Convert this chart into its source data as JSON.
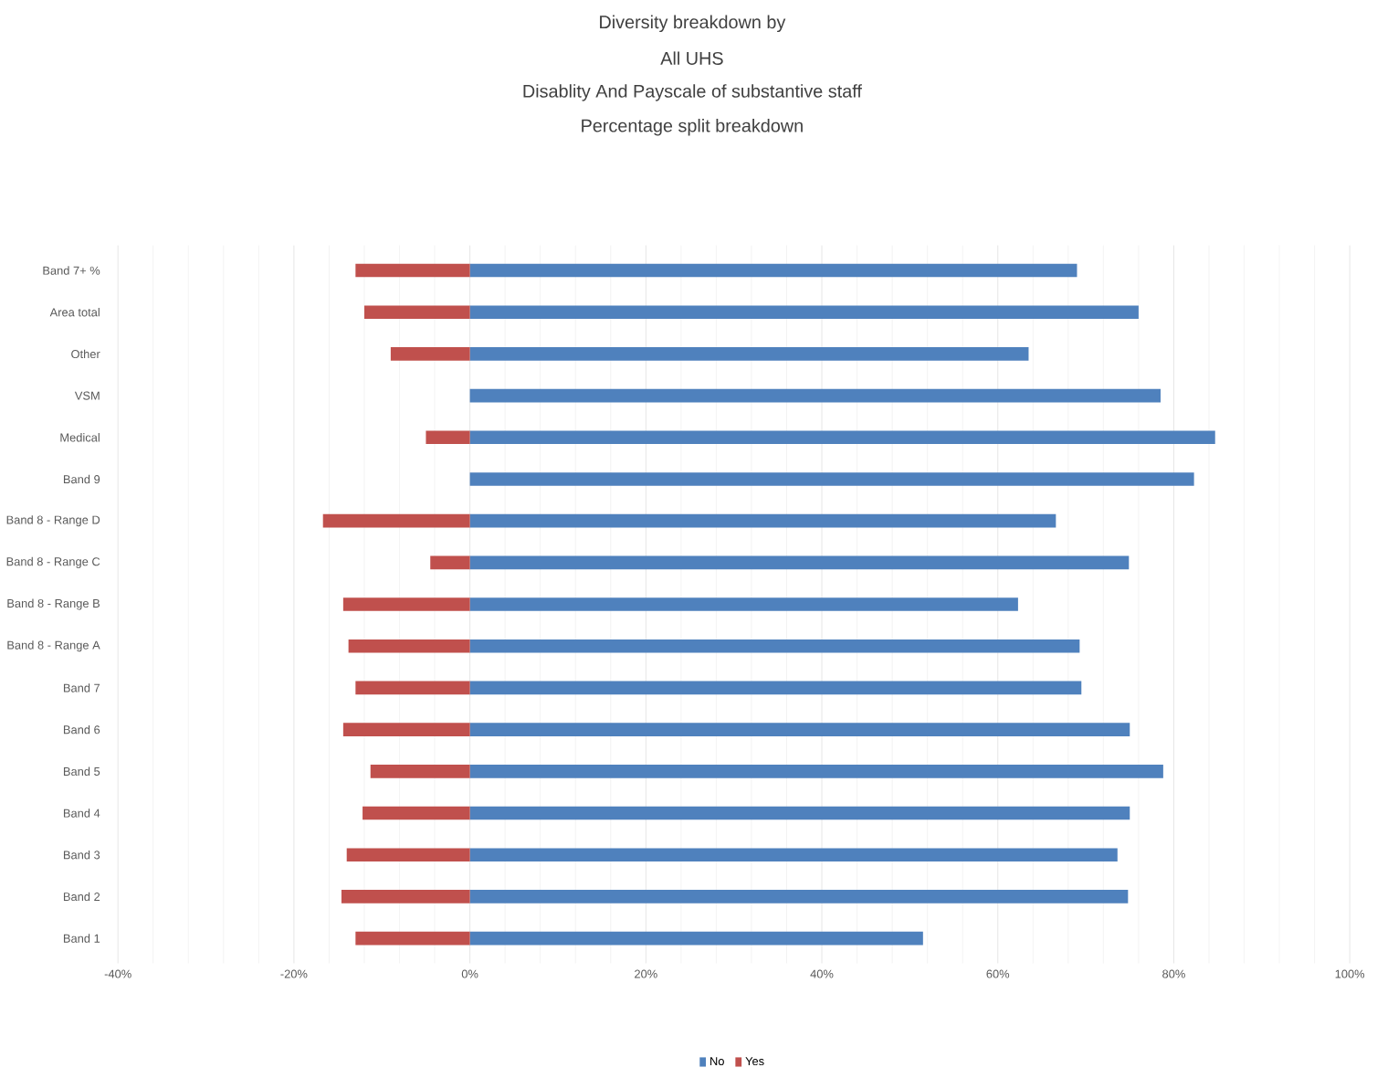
{
  "chart_data": {
    "type": "bar",
    "orientation": "horizontal",
    "title": "Diversity breakdown by",
    "subtitle": "All UHS",
    "annotations": [
      "Disablity And Payscale of substantive staff",
      "Percentage split breakdown"
    ],
    "categories": [
      "Band 7+ %",
      "Area total",
      "Other",
      "VSM",
      "Medical",
      "Band 9",
      "Band 8 - Range D",
      "Band 8 - Range C",
      "Band 8 - Range B",
      "Band 8 - Range A",
      "Band 7",
      "Band 6",
      "Band 5",
      "Band 4",
      "Band 3",
      "Band 2",
      "Band 1"
    ],
    "series": [
      {
        "name": "No",
        "color": "#4f81bd",
        "values": [
          69,
          76,
          63.5,
          78.5,
          84.7,
          82.3,
          66.6,
          74.9,
          62.3,
          69.3,
          69.5,
          75,
          78.8,
          75,
          73.6,
          74.8,
          51.5
        ]
      },
      {
        "name": "Yes",
        "color": "#c0504d",
        "values": [
          -13,
          -12,
          -9,
          0,
          -5,
          0,
          -16.7,
          -4.5,
          -14.4,
          -13.8,
          -13,
          -14.4,
          -11.3,
          -12.2,
          -14,
          -14.6,
          -13
        ]
      }
    ],
    "xlim": [
      -40,
      100
    ],
    "xticks": [
      {
        "value": -40,
        "label": "-40%"
      },
      {
        "value": -20,
        "label": "-20%"
      },
      {
        "value": 0,
        "label": "0%"
      },
      {
        "value": 20,
        "label": "20%"
      },
      {
        "value": 40,
        "label": "40%"
      },
      {
        "value": 60,
        "label": "60%"
      },
      {
        "value": 80,
        "label": "80%"
      },
      {
        "value": 100,
        "label": "100%"
      }
    ],
    "stacked": true,
    "grid": "x",
    "legend": "bottom"
  }
}
